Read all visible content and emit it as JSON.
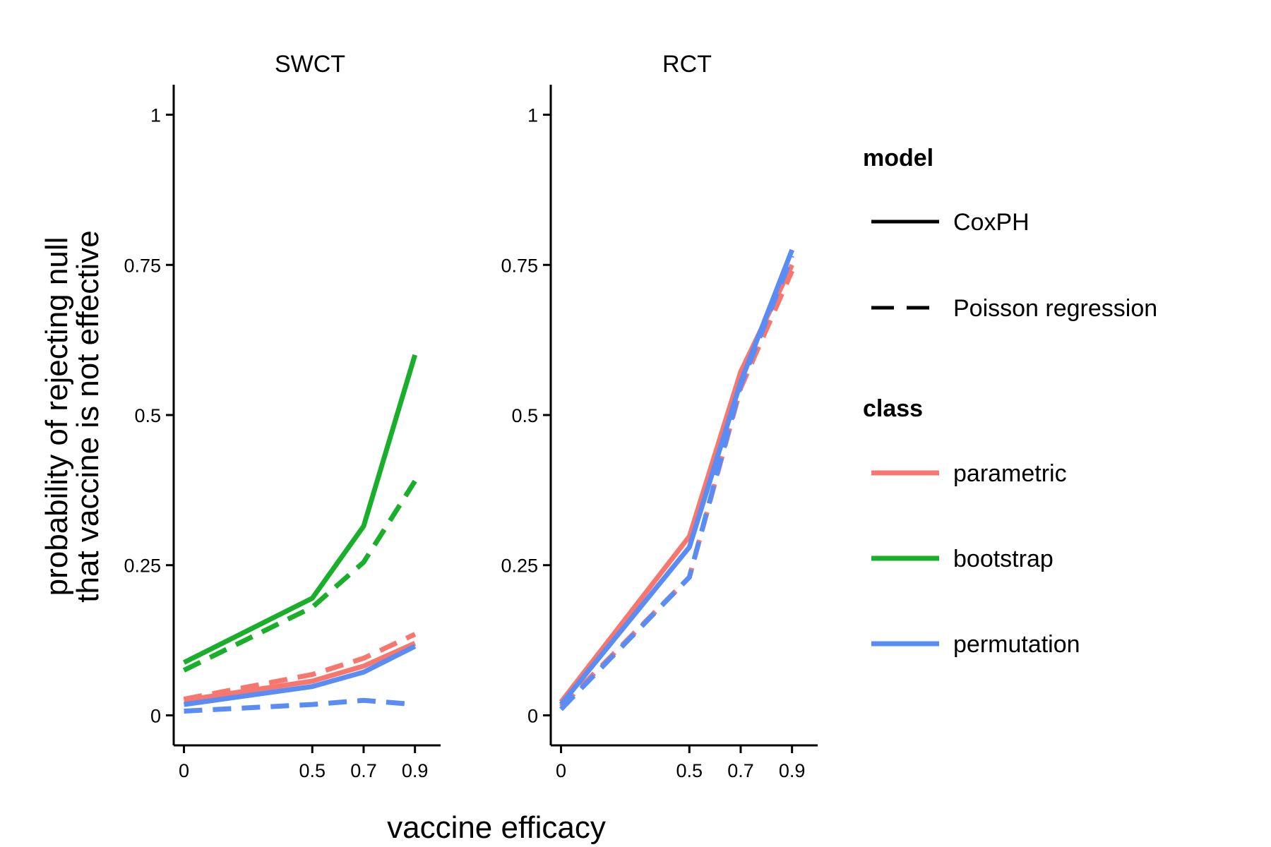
{
  "chart_data": {
    "type": "line",
    "xlabel": "vaccine efficacy",
    "ylabel_lines": [
      "probability of rejecting null",
      "that vaccine is not effective"
    ],
    "x_ticks": [
      0,
      0.5,
      0.7,
      0.9
    ],
    "x_tick_labels": [
      "0",
      "0.5",
      "0.7",
      "0.9"
    ],
    "y_ticks": [
      0,
      0.25,
      0.5,
      0.75,
      1
    ],
    "y_tick_labels": [
      "0",
      "0.25",
      "0.5",
      "0.75",
      "1"
    ],
    "xlim": [
      -0.04,
      1.0
    ],
    "ylim": [
      -0.05,
      1.05
    ],
    "grid": false,
    "legend_placement": "right",
    "legend": {
      "model_title": "model",
      "model_entries": [
        {
          "name": "CoxPH",
          "dash": "solid"
        },
        {
          "name": "Poisson regression",
          "dash": "dashed"
        }
      ],
      "class_title": "class",
      "class_entries": [
        {
          "name": "parametric",
          "color": "#F8766D"
        },
        {
          "name": "bootstrap",
          "color": "#1AAF2A"
        },
        {
          "name": "permutation",
          "color": "#5A8CF5"
        }
      ]
    },
    "panels": [
      {
        "label": "SWCT",
        "series": [
          {
            "model": "CoxPH",
            "class": "bootstrap",
            "x": [
              0,
              0.5,
              0.7,
              0.9
            ],
            "y": [
              0.088,
              0.195,
              0.315,
              0.6
            ]
          },
          {
            "model": "Poisson regression",
            "class": "bootstrap",
            "x": [
              0,
              0.5,
              0.7,
              0.9
            ],
            "y": [
              0.075,
              0.18,
              0.255,
              0.39
            ]
          },
          {
            "model": "CoxPH",
            "class": "parametric",
            "x": [
              0,
              0.5,
              0.7,
              0.9
            ],
            "y": [
              0.025,
              0.057,
              0.082,
              0.12
            ]
          },
          {
            "model": "Poisson regression",
            "class": "parametric",
            "x": [
              0,
              0.5,
              0.7,
              0.9
            ],
            "y": [
              0.027,
              0.068,
              0.095,
              0.135
            ]
          },
          {
            "model": "CoxPH",
            "class": "permutation",
            "x": [
              0,
              0.5,
              0.7,
              0.9
            ],
            "y": [
              0.018,
              0.048,
              0.072,
              0.115
            ]
          },
          {
            "model": "Poisson regression",
            "class": "permutation",
            "x": [
              0,
              0.5,
              0.7,
              0.9
            ],
            "y": [
              0.007,
              0.018,
              0.025,
              0.018
            ]
          }
        ]
      },
      {
        "label": "RCT",
        "series": [
          {
            "model": "CoxPH",
            "class": "parametric",
            "x": [
              0,
              0.5,
              0.7,
              0.9
            ],
            "y": [
              0.022,
              0.298,
              0.572,
              0.75
            ]
          },
          {
            "model": "Poisson regression",
            "class": "parametric",
            "x": [
              0,
              0.5,
              0.7,
              0.9
            ],
            "y": [
              0.014,
              0.23,
              0.545,
              0.74
            ]
          },
          {
            "model": "CoxPH",
            "class": "permutation",
            "x": [
              0,
              0.5,
              0.7,
              0.9
            ],
            "y": [
              0.018,
              0.28,
              0.555,
              0.775
            ]
          },
          {
            "model": "Poisson regression",
            "class": "permutation",
            "x": [
              0,
              0.5,
              0.7,
              0.9
            ],
            "y": [
              0.01,
              0.23,
              0.55,
              0.765
            ]
          }
        ]
      }
    ]
  }
}
